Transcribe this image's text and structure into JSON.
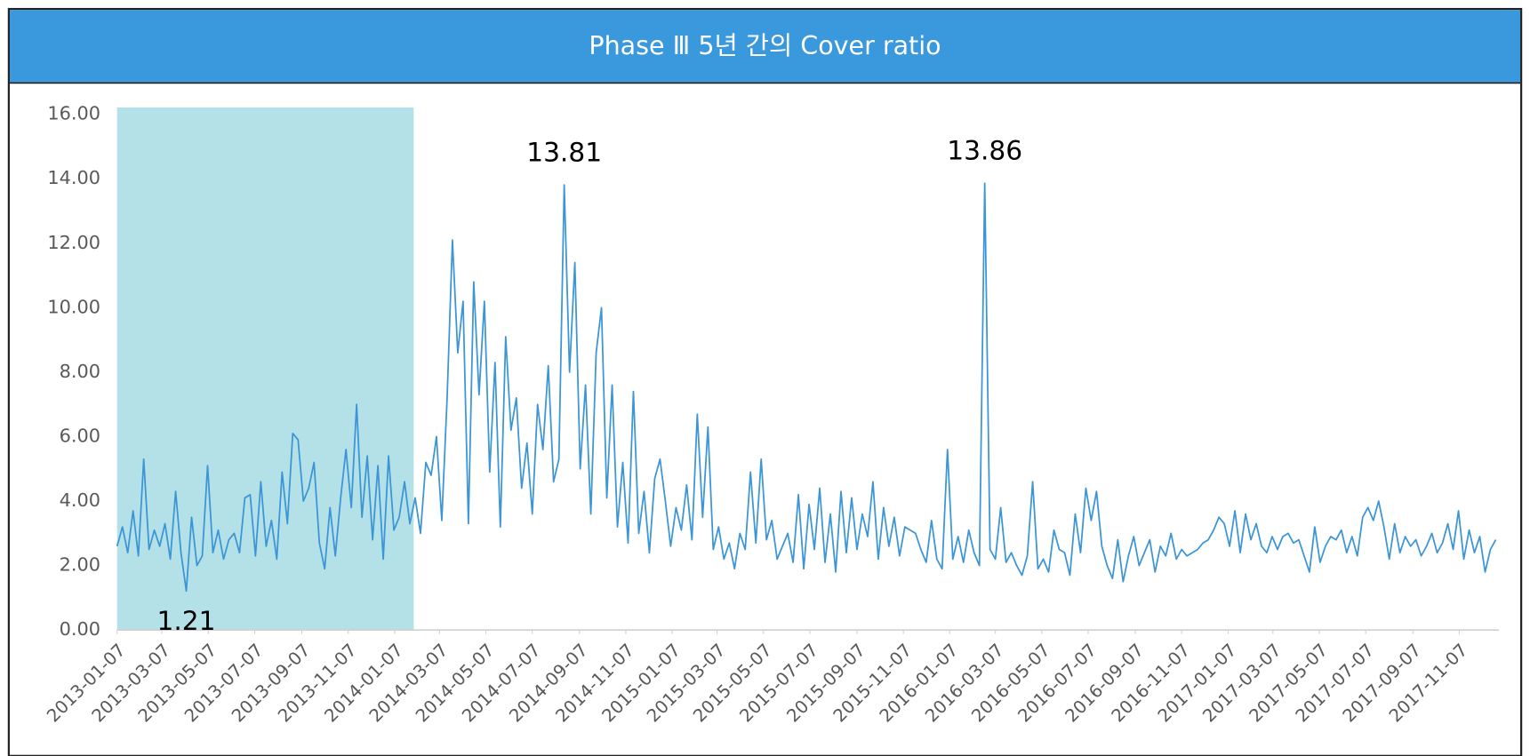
{
  "chart_data": {
    "type": "line",
    "title": "Phase Ⅲ 5년 간의 Cover ratio",
    "color": "#3b95d6",
    "highlight_color": "#b4e0e8",
    "highlight_range": [
      "2013-01-07",
      "2014-02-01"
    ],
    "xlim": [
      "2013-01-07",
      "2017-12-29"
    ],
    "ylim": [
      0,
      16
    ],
    "yticks": [
      {
        "value": 0,
        "label": "0.00"
      },
      {
        "value": 2,
        "label": "2.00"
      },
      {
        "value": 4,
        "label": "4.00"
      },
      {
        "value": 6,
        "label": "6.00"
      },
      {
        "value": 8,
        "label": "8.00"
      },
      {
        "value": 10,
        "label": "10.00"
      },
      {
        "value": 12,
        "label": "12.00"
      },
      {
        "value": 14,
        "label": "14.00"
      },
      {
        "value": 16,
        "label": "16.00"
      }
    ],
    "xticks": [
      "2013-01-07",
      "2013-03-07",
      "2013-05-07",
      "2013-07-07",
      "2013-09-07",
      "2013-11-07",
      "2014-01-07",
      "2014-03-07",
      "2014-05-07",
      "2014-07-07",
      "2014-09-07",
      "2014-11-07",
      "2015-01-07",
      "2015-03-07",
      "2015-05-07",
      "2015-07-07",
      "2015-09-07",
      "2015-11-07",
      "2016-01-07",
      "2016-03-07",
      "2016-05-07",
      "2016-07-07",
      "2016-09-07",
      "2016-11-07",
      "2017-01-07",
      "2017-03-07",
      "2017-05-07",
      "2017-07-07",
      "2017-09-07",
      "2017-11-07"
    ],
    "annotations": [
      {
        "label": "1.21",
        "x": "2013-04-08",
        "y": 1.21
      },
      {
        "label": "13.81",
        "x": "2014-08-18",
        "y": 13.81
      },
      {
        "label": "13.86",
        "x": "2016-02-22",
        "y": 13.86
      }
    ],
    "x": [
      "2013-01-07",
      "2013-01-14",
      "2013-01-21",
      "2013-01-28",
      "2013-02-04",
      "2013-02-11",
      "2013-02-18",
      "2013-02-25",
      "2013-03-04",
      "2013-03-11",
      "2013-03-18",
      "2013-03-25",
      "2013-04-01",
      "2013-04-08",
      "2013-04-15",
      "2013-04-22",
      "2013-04-29",
      "2013-05-06",
      "2013-05-13",
      "2013-05-20",
      "2013-05-27",
      "2013-06-03",
      "2013-06-10",
      "2013-06-17",
      "2013-06-24",
      "2013-07-01",
      "2013-07-08",
      "2013-07-15",
      "2013-07-22",
      "2013-07-29",
      "2013-08-05",
      "2013-08-12",
      "2013-08-19",
      "2013-08-26",
      "2013-09-02",
      "2013-09-09",
      "2013-09-16",
      "2013-09-23",
      "2013-09-30",
      "2013-10-07",
      "2013-10-14",
      "2013-10-21",
      "2013-10-28",
      "2013-11-04",
      "2013-11-11",
      "2013-11-18",
      "2013-11-25",
      "2013-12-02",
      "2013-12-09",
      "2013-12-16",
      "2013-12-23",
      "2013-12-30",
      "2014-01-06",
      "2014-01-13",
      "2014-01-20",
      "2014-01-27",
      "2014-02-03",
      "2014-02-10",
      "2014-02-17",
      "2014-02-24",
      "2014-03-03",
      "2014-03-10",
      "2014-03-17",
      "2014-03-24",
      "2014-03-31",
      "2014-04-07",
      "2014-04-14",
      "2014-04-21",
      "2014-04-28",
      "2014-05-05",
      "2014-05-12",
      "2014-05-19",
      "2014-05-26",
      "2014-06-02",
      "2014-06-09",
      "2014-06-16",
      "2014-06-23",
      "2014-06-30",
      "2014-07-07",
      "2014-07-14",
      "2014-07-21",
      "2014-07-28",
      "2014-08-04",
      "2014-08-11",
      "2014-08-18",
      "2014-08-25",
      "2014-09-01",
      "2014-09-08",
      "2014-09-15",
      "2014-09-22",
      "2014-09-29",
      "2014-10-06",
      "2014-10-13",
      "2014-10-20",
      "2014-10-27",
      "2014-11-03",
      "2014-11-10",
      "2014-11-17",
      "2014-11-24",
      "2014-12-01",
      "2014-12-08",
      "2014-12-15",
      "2014-12-22",
      "2014-12-29",
      "2015-01-05",
      "2015-01-12",
      "2015-01-19",
      "2015-01-26",
      "2015-02-02",
      "2015-02-09",
      "2015-02-16",
      "2015-02-23",
      "2015-03-02",
      "2015-03-09",
      "2015-03-16",
      "2015-03-23",
      "2015-03-30",
      "2015-04-06",
      "2015-04-13",
      "2015-04-20",
      "2015-04-27",
      "2015-05-04",
      "2015-05-11",
      "2015-05-18",
      "2015-05-25",
      "2015-06-01",
      "2015-06-08",
      "2015-06-15",
      "2015-06-22",
      "2015-06-29",
      "2015-07-06",
      "2015-07-13",
      "2015-07-20",
      "2015-07-27",
      "2015-08-03",
      "2015-08-10",
      "2015-08-17",
      "2015-08-24",
      "2015-08-31",
      "2015-09-07",
      "2015-09-14",
      "2015-09-21",
      "2015-09-28",
      "2015-10-05",
      "2015-10-12",
      "2015-10-19",
      "2015-10-26",
      "2015-11-02",
      "2015-11-09",
      "2015-11-16",
      "2015-11-23",
      "2015-11-30",
      "2015-12-07",
      "2015-12-14",
      "2015-12-21",
      "2015-12-28",
      "2016-01-04",
      "2016-01-11",
      "2016-01-18",
      "2016-01-25",
      "2016-02-01",
      "2016-02-08",
      "2016-02-15",
      "2016-02-22",
      "2016-02-29",
      "2016-03-07",
      "2016-03-14",
      "2016-03-21",
      "2016-03-28",
      "2016-04-04",
      "2016-04-11",
      "2016-04-18",
      "2016-04-25",
      "2016-05-02",
      "2016-05-09",
      "2016-05-16",
      "2016-05-23",
      "2016-05-30",
      "2016-06-06",
      "2016-06-13",
      "2016-06-20",
      "2016-06-27",
      "2016-07-04",
      "2016-07-11",
      "2016-07-18",
      "2016-07-25",
      "2016-08-01",
      "2016-08-08",
      "2016-08-15",
      "2016-08-22",
      "2016-08-29",
      "2016-09-05",
      "2016-09-12",
      "2016-09-19",
      "2016-09-26",
      "2016-10-03",
      "2016-10-10",
      "2016-10-17",
      "2016-10-24",
      "2016-10-31",
      "2016-11-07",
      "2016-11-14",
      "2016-11-21",
      "2016-11-28",
      "2016-12-05",
      "2016-12-12",
      "2016-12-19",
      "2016-12-26",
      "2017-01-02",
      "2017-01-09",
      "2017-01-16",
      "2017-01-23",
      "2017-01-30",
      "2017-02-06",
      "2017-02-13",
      "2017-02-20",
      "2017-02-27",
      "2017-03-06",
      "2017-03-13",
      "2017-03-20",
      "2017-03-27",
      "2017-04-03",
      "2017-04-10",
      "2017-04-17",
      "2017-04-24",
      "2017-05-01",
      "2017-05-08",
      "2017-05-15",
      "2017-05-22",
      "2017-05-29",
      "2017-06-05",
      "2017-06-12",
      "2017-06-19",
      "2017-06-26",
      "2017-07-03",
      "2017-07-10",
      "2017-07-17",
      "2017-07-24",
      "2017-07-31",
      "2017-08-07",
      "2017-08-14",
      "2017-08-21",
      "2017-08-28",
      "2017-09-04",
      "2017-09-11",
      "2017-09-18",
      "2017-09-25",
      "2017-10-02",
      "2017-10-09",
      "2017-10-16",
      "2017-10-23",
      "2017-10-30",
      "2017-11-06",
      "2017-11-13",
      "2017-11-20",
      "2017-11-27",
      "2017-12-04",
      "2017-12-11",
      "2017-12-18",
      "2017-12-25"
    ],
    "values": [
      2.6,
      3.2,
      2.4,
      3.7,
      2.3,
      5.3,
      2.5,
      3.1,
      2.6,
      3.3,
      2.2,
      4.3,
      2.4,
      1.21,
      3.5,
      2.0,
      2.3,
      5.1,
      2.4,
      3.1,
      2.2,
      2.8,
      3.0,
      2.4,
      4.1,
      4.2,
      2.3,
      4.6,
      2.6,
      3.4,
      2.2,
      4.9,
      3.3,
      6.1,
      5.9,
      4.0,
      4.4,
      5.2,
      2.7,
      1.9,
      3.8,
      2.3,
      4.1,
      5.6,
      3.8,
      7.0,
      3.5,
      5.4,
      2.8,
      5.1,
      2.2,
      5.4,
      3.1,
      3.5,
      4.6,
      3.3,
      4.1,
      3.0,
      5.2,
      4.8,
      6.0,
      3.4,
      7.2,
      12.1,
      8.6,
      10.2,
      3.3,
      10.8,
      7.3,
      10.2,
      4.9,
      8.3,
      3.2,
      9.1,
      6.2,
      7.2,
      4.4,
      5.8,
      3.6,
      7.0,
      5.6,
      8.2,
      4.6,
      5.3,
      13.81,
      8.0,
      11.4,
      5.0,
      7.6,
      3.6,
      8.6,
      10.0,
      4.1,
      7.6,
      3.2,
      5.2,
      2.7,
      7.4,
      3.0,
      4.3,
      2.4,
      4.7,
      5.3,
      4.0,
      2.6,
      3.8,
      3.1,
      4.5,
      2.8,
      6.7,
      3.5,
      6.3,
      2.5,
      3.2,
      2.2,
      2.7,
      1.9,
      3.0,
      2.5,
      4.9,
      2.7,
      5.3,
      2.8,
      3.4,
      2.2,
      2.6,
      3.0,
      2.1,
      4.2,
      1.9,
      3.9,
      2.5,
      4.4,
      2.1,
      3.6,
      1.8,
      4.3,
      2.4,
      4.1,
      2.5,
      3.6,
      2.9,
      4.6,
      2.2,
      3.8,
      2.6,
      3.5,
      2.3,
      3.2,
      3.1,
      3.0,
      2.5,
      2.1,
      3.4,
      2.2,
      1.9,
      5.6,
      2.2,
      2.9,
      2.1,
      3.1,
      2.4,
      2.0,
      13.86,
      2.5,
      2.2,
      3.8,
      2.1,
      2.4,
      2.0,
      1.7,
      2.3,
      4.6,
      1.9,
      2.2,
      1.8,
      3.1,
      2.5,
      2.4,
      1.7,
      3.6,
      2.4,
      4.4,
      3.4,
      4.3,
      2.6,
      2.0,
      1.6,
      2.8,
      1.5,
      2.3,
      2.9,
      2.0,
      2.4,
      2.8,
      1.8,
      2.6,
      2.3,
      3.0,
      2.2,
      2.5,
      2.3,
      2.4,
      2.5,
      2.7,
      2.8,
      3.1,
      3.5,
      3.3,
      2.6,
      3.7,
      2.4,
      3.6,
      2.8,
      3.3,
      2.6,
      2.4,
      2.9,
      2.5,
      2.9,
      3.0,
      2.7,
      2.8,
      2.3,
      1.8,
      3.2,
      2.1,
      2.6,
      2.9,
      2.8,
      3.1,
      2.4,
      2.9,
      2.3,
      3.5,
      3.8,
      3.4,
      4.0,
      3.2,
      2.2,
      3.3,
      2.4,
      2.9,
      2.6,
      2.8,
      2.3,
      2.6,
      3.0,
      2.4,
      2.7,
      3.3,
      2.5,
      3.7,
      2.2,
      3.1,
      2.4,
      2.9,
      1.8,
      2.5,
      2.8
    ]
  }
}
